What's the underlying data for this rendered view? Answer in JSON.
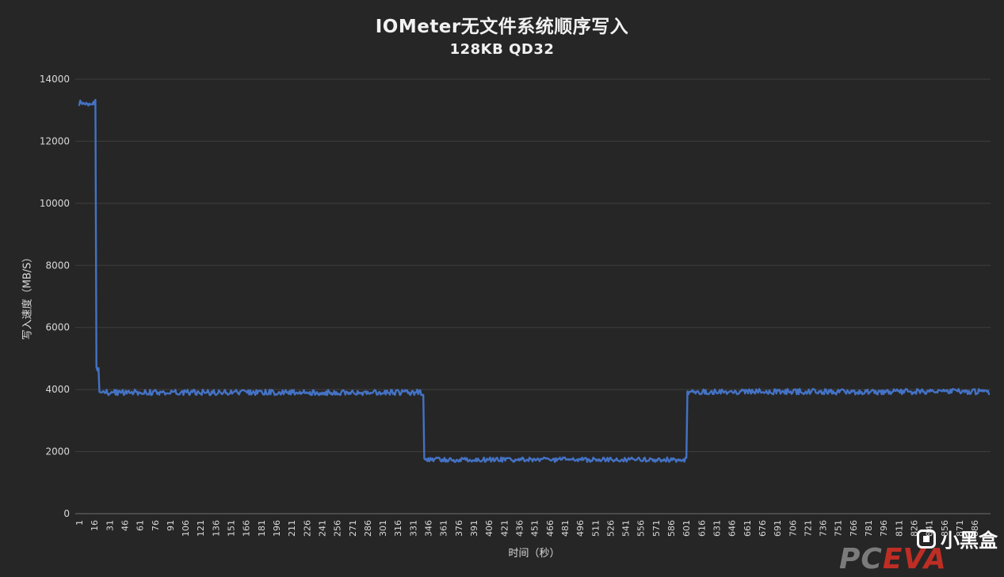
{
  "page": {
    "background": "#262626"
  },
  "header": {
    "title": "IOMeter无文件系统顺序写入",
    "subtitle": "128KB QD32"
  },
  "watermark": {
    "pc": "PC",
    "eva": "EVA",
    "brand": "小黑盒"
  },
  "chart_data": {
    "type": "line",
    "title": "IOMeter无文件系统顺序写入",
    "subtitle": "128KB QD32",
    "xlabel": "时间（秒）",
    "ylabel": "写入速度（MB/S）",
    "x_range": [
      1,
      900
    ],
    "ylim": [
      0,
      14000
    ],
    "grid": true,
    "legend": "none",
    "line_color": "#4472c4",
    "grid_color": "#3f3f3f",
    "axis_line_color": "#6e6e6e",
    "tick_label_color": "#d9d9d9",
    "y_ticks": [
      0,
      2000,
      4000,
      6000,
      8000,
      10000,
      12000,
      14000
    ],
    "x_ticks": [
      1,
      16,
      31,
      46,
      61,
      76,
      91,
      106,
      121,
      136,
      151,
      166,
      181,
      196,
      211,
      226,
      241,
      256,
      271,
      286,
      301,
      316,
      331,
      346,
      361,
      376,
      391,
      406,
      421,
      436,
      451,
      466,
      481,
      496,
      511,
      526,
      541,
      556,
      571,
      586,
      601,
      616,
      631,
      646,
      661,
      676,
      691,
      706,
      721,
      736,
      751,
      766,
      781,
      796,
      811,
      826,
      841,
      856,
      871,
      886
    ],
    "segments": [
      {
        "x_start": 1,
        "x_end": 17,
        "value": 13230,
        "noise": 110
      },
      {
        "x_start": 18,
        "x_end": 20,
        "value": 4600,
        "noise": 130
      },
      {
        "x_start": 21,
        "x_end": 341,
        "value": 3910,
        "noise": 90
      },
      {
        "x_start": 342,
        "x_end": 601,
        "value": 1740,
        "noise": 75
      },
      {
        "x_start": 602,
        "x_end": 900,
        "value": 3930,
        "noise": 90
      }
    ]
  }
}
